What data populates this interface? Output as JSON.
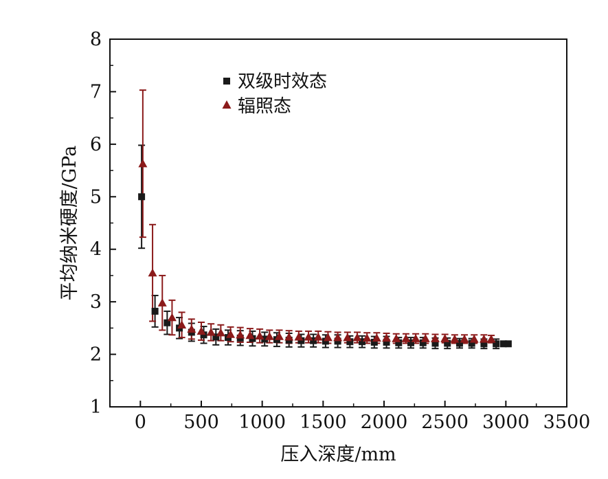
{
  "chart_data": {
    "type": "scatter",
    "title": "",
    "xlabel": "压入深度/mm",
    "ylabel": "平均纳米硬度/GPa",
    "xlim": [
      -250,
      3500
    ],
    "ylim": [
      1,
      8
    ],
    "xticks": [
      0,
      500,
      1000,
      1500,
      2000,
      2500,
      3000,
      3500
    ],
    "yticks": [
      1,
      2,
      3,
      4,
      5,
      6,
      7,
      8
    ],
    "xtick_labels": [
      "0",
      "500",
      "1000",
      "1500",
      "2000",
      "2500",
      "3000",
      "3500"
    ],
    "ytick_labels": [
      "1",
      "2",
      "3",
      "4",
      "5",
      "6",
      "7",
      "8"
    ],
    "legend_position": "top-left",
    "grid": false,
    "series": [
      {
        "name": "双级时效态",
        "marker": "square",
        "color": "#1a1a1a",
        "x": [
          10,
          120,
          220,
          320,
          420,
          520,
          620,
          720,
          820,
          920,
          1020,
          1120,
          1220,
          1320,
          1420,
          1520,
          1620,
          1720,
          1820,
          1920,
          2020,
          2120,
          2220,
          2320,
          2420,
          2520,
          2620,
          2720,
          2820,
          2920,
          2980,
          3020
        ],
        "y": [
          5.0,
          2.82,
          2.6,
          2.5,
          2.42,
          2.37,
          2.33,
          2.32,
          2.31,
          2.3,
          2.29,
          2.28,
          2.27,
          2.26,
          2.26,
          2.25,
          2.25,
          2.24,
          2.24,
          2.23,
          2.23,
          2.22,
          2.22,
          2.22,
          2.21,
          2.21,
          2.21,
          2.21,
          2.2,
          2.2,
          2.2,
          2.2
        ],
        "err": [
          0.98,
          0.3,
          0.22,
          0.2,
          0.17,
          0.16,
          0.15,
          0.14,
          0.14,
          0.14,
          0.13,
          0.13,
          0.13,
          0.12,
          0.12,
          0.12,
          0.12,
          0.11,
          0.11,
          0.11,
          0.11,
          0.1,
          0.1,
          0.1,
          0.1,
          0.1,
          0.09,
          0.09,
          0.09,
          0.09,
          0.0,
          0.0
        ]
      },
      {
        "name": "辐照态",
        "marker": "triangle",
        "color": "#8b1a1a",
        "x": [
          20,
          100,
          180,
          260,
          340,
          420,
          500,
          580,
          660,
          740,
          820,
          900,
          980,
          1060,
          1140,
          1220,
          1300,
          1380,
          1460,
          1540,
          1620,
          1700,
          1780,
          1860,
          1940,
          2020,
          2100,
          2180,
          2260,
          2340,
          2420,
          2500,
          2580,
          2660,
          2740,
          2820,
          2880
        ],
        "y": [
          5.63,
          3.55,
          2.98,
          2.7,
          2.56,
          2.48,
          2.44,
          2.42,
          2.41,
          2.38,
          2.37,
          2.36,
          2.35,
          2.34,
          2.34,
          2.33,
          2.33,
          2.33,
          2.33,
          2.32,
          2.32,
          2.32,
          2.32,
          2.31,
          2.31,
          2.31,
          2.3,
          2.3,
          2.3,
          2.3,
          2.3,
          2.3,
          2.29,
          2.29,
          2.29,
          2.29,
          2.29
        ],
        "err": [
          1.4,
          0.92,
          0.52,
          0.33,
          0.24,
          0.19,
          0.17,
          0.16,
          0.15,
          0.14,
          0.14,
          0.13,
          0.13,
          0.12,
          0.12,
          0.12,
          0.11,
          0.11,
          0.11,
          0.11,
          0.1,
          0.1,
          0.1,
          0.1,
          0.1,
          0.09,
          0.09,
          0.09,
          0.09,
          0.09,
          0.08,
          0.08,
          0.08,
          0.08,
          0.08,
          0.08,
          0.07
        ]
      }
    ]
  }
}
